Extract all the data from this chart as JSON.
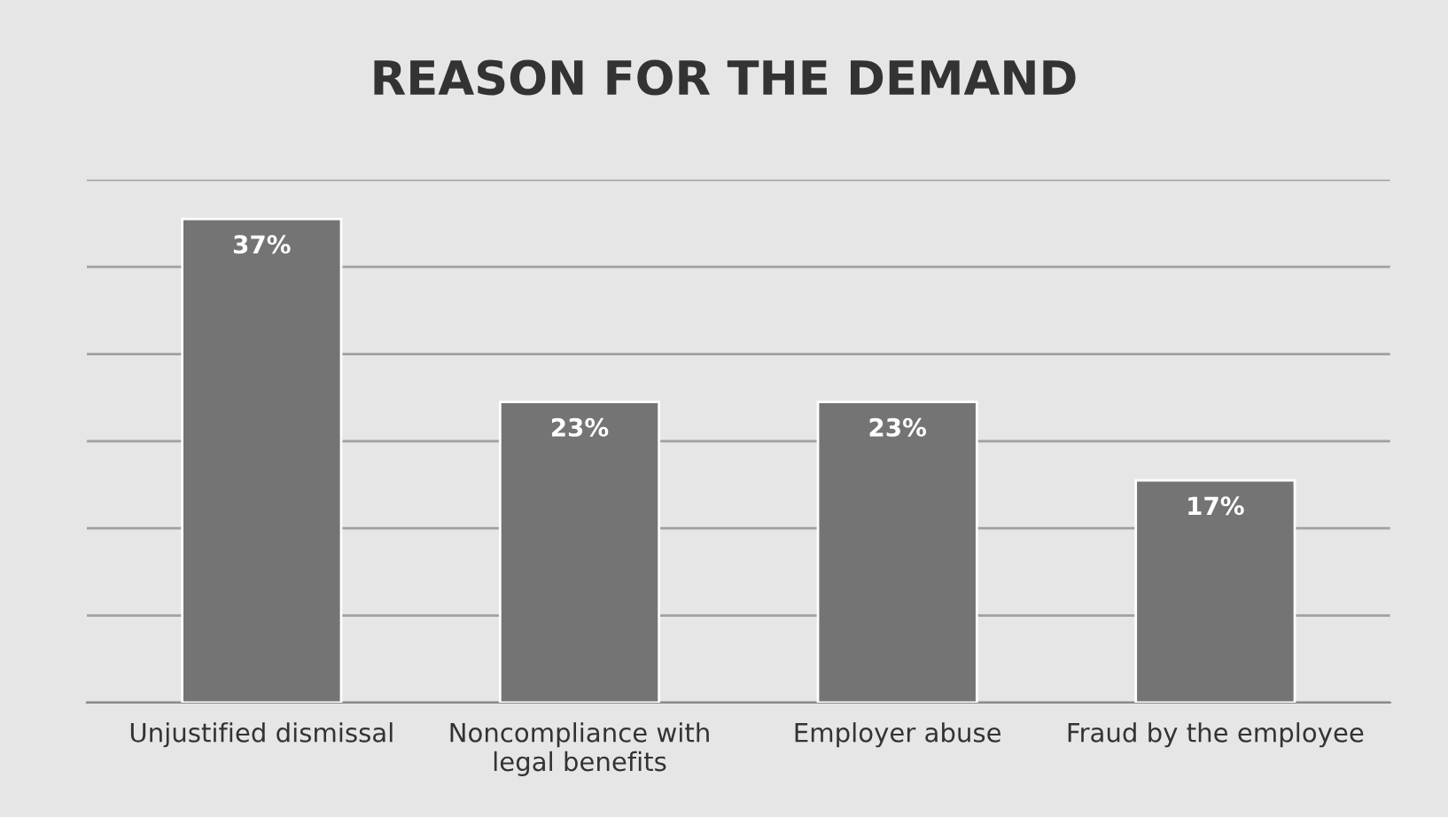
{
  "chart_data": {
    "type": "bar",
    "title": "REASON FOR THE DEMAND",
    "categories": [
      "Unjustified dismissal",
      "Noncompliance with legal benefits",
      "Employer abuse",
      "Fraud by the employee"
    ],
    "values": [
      37,
      23,
      23,
      17
    ],
    "color": "#747474",
    "value_labels": [
      "37%",
      "23%",
      "23%",
      "17%"
    ],
    "ylim": [
      0,
      40
    ],
    "yticks": [
      {
        "value": 0,
        "label": null
      },
      {
        "value": 6.667,
        "label": null
      },
      {
        "value": 13.333,
        "label": null
      },
      {
        "value": 20,
        "label": null
      },
      {
        "value": 26.667,
        "label": null
      },
      {
        "value": 33.333,
        "label": null
      },
      {
        "value": 40,
        "label": null
      }
    ],
    "grid": "y",
    "legend": false
  }
}
